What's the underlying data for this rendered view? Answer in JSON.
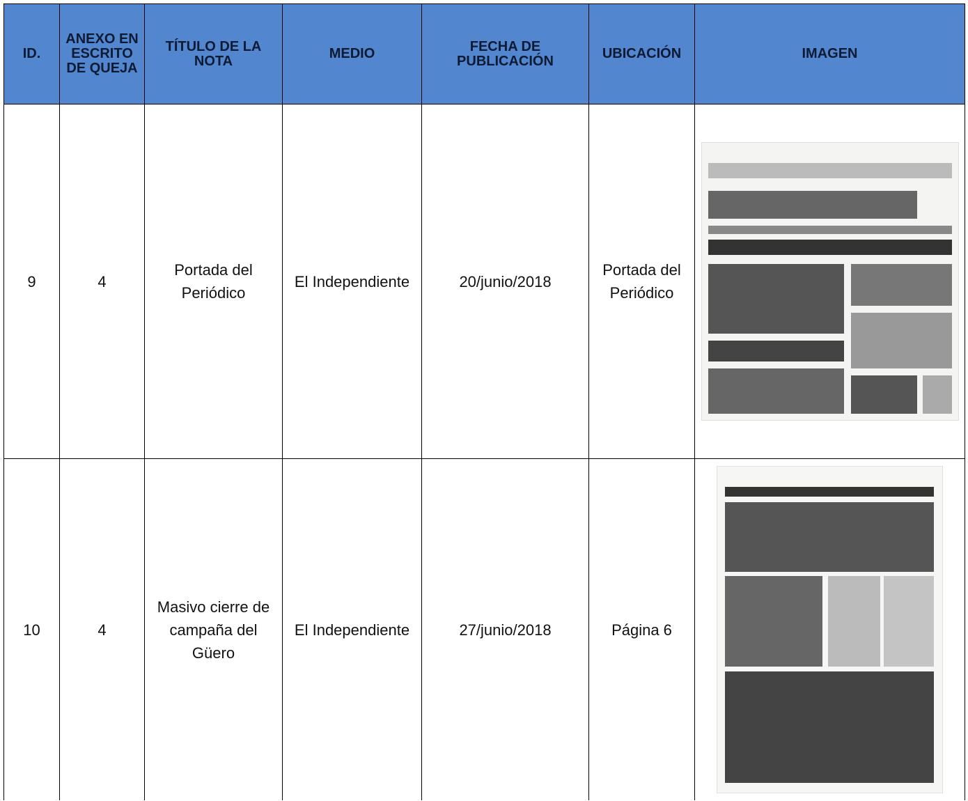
{
  "table": {
    "headers": [
      "ID.",
      "ANEXO EN ESCRITO DE QUEJA",
      "TÍTULO DE LA NOTA",
      "MEDIO",
      "FECHA DE PUBLICACIÓN",
      "UBICACIÓN",
      "IMAGEN"
    ],
    "rows": [
      [
        "9",
        "4",
        "Portada del Periódico",
        "El Independiente",
        "20/junio/2018",
        "Portada del Periódico"
      ],
      [
        "10",
        "4",
        "Masivo cierre de campaña del Güero",
        "El Independiente",
        "27/junio/2018",
        "Página 6"
      ]
    ]
  }
}
